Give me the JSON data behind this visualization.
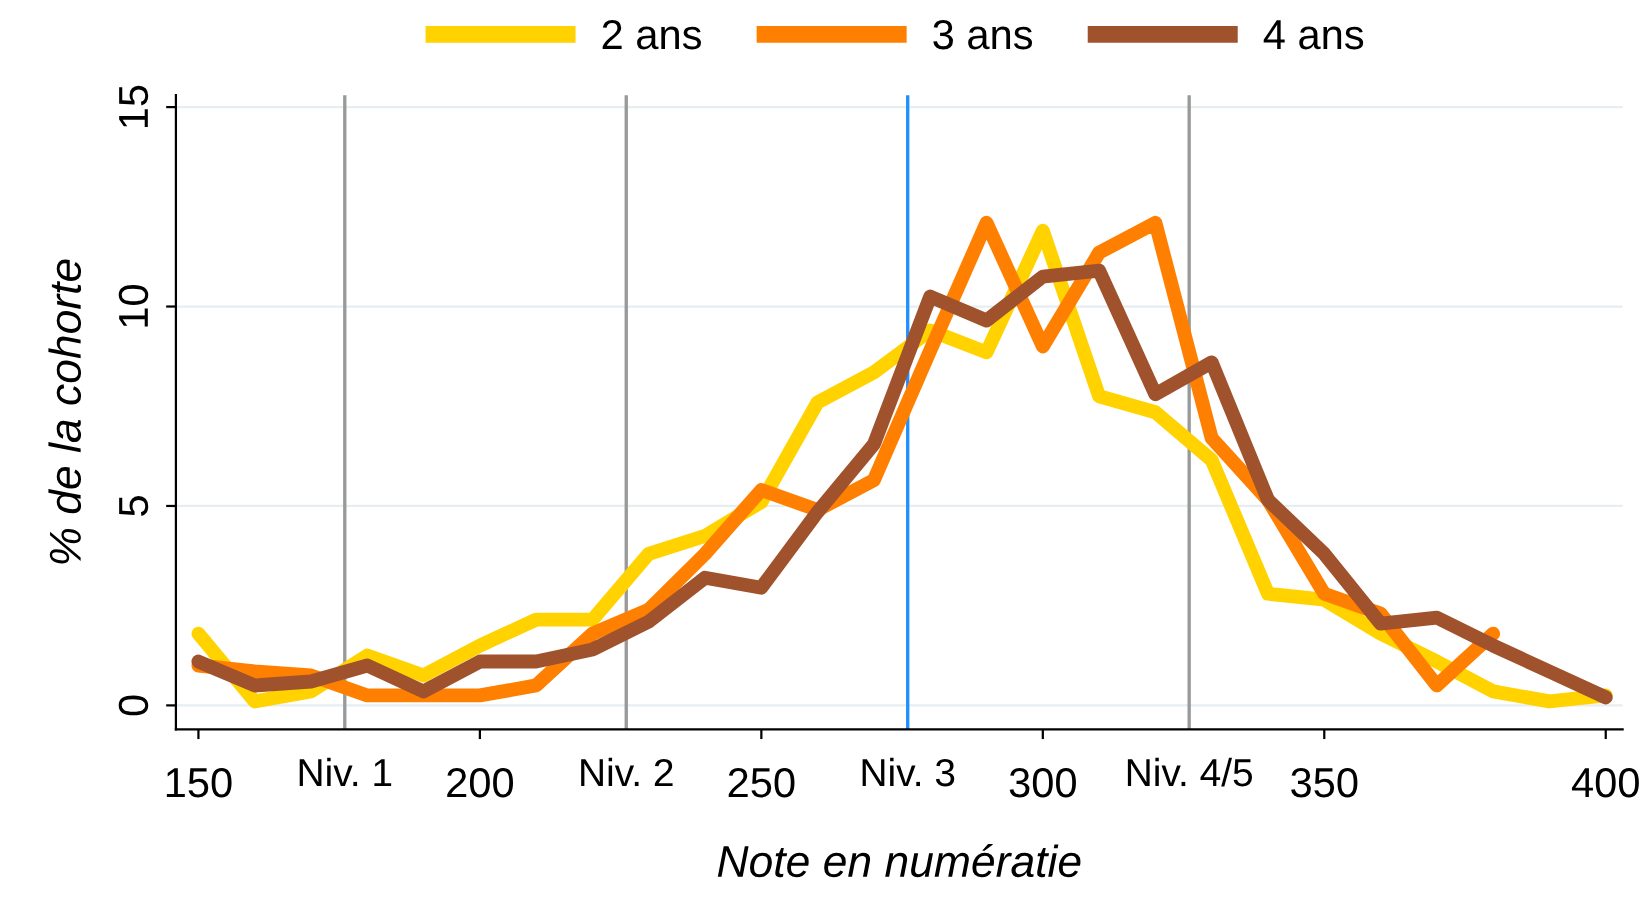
{
  "chart_data": {
    "type": "line",
    "xlabel": "Note en numératie",
    "ylabel": "% de la cohorte",
    "xlim": [
      146,
      403
    ],
    "ylim": [
      -0.6,
      15.3
    ],
    "xticks": [
      150,
      200,
      250,
      300,
      350,
      400
    ],
    "yticks": [
      0,
      5,
      10,
      15
    ],
    "grid": "y",
    "legend": "top",
    "marker": "none",
    "line_style": "solid",
    "series": [
      {
        "name": "2 ans",
        "color": "#ffd200",
        "x": [
          150,
          160,
          170,
          180,
          190,
          200,
          210,
          220,
          230,
          240,
          250,
          260,
          270,
          280,
          290,
          300,
          310,
          320,
          330,
          340,
          350,
          360,
          370,
          380,
          390,
          400
        ],
        "values": [
          1.8,
          0.1,
          0.35,
          1.25,
          0.75,
          1.5,
          2.15,
          2.15,
          3.8,
          4.25,
          5.1,
          7.6,
          8.35,
          9.4,
          8.85,
          11.9,
          7.75,
          7.35,
          6.15,
          2.8,
          2.65,
          1.8,
          1.1,
          0.35,
          0.1,
          0.25
        ]
      },
      {
        "name": "3 ans",
        "color": "#ff8000",
        "x": [
          150,
          160,
          170,
          180,
          190,
          200,
          210,
          220,
          230,
          240,
          250,
          260,
          270,
          280,
          290,
          300,
          310,
          320,
          330,
          340,
          350,
          360,
          370,
          380
        ],
        "values": [
          1.0,
          0.85,
          0.75,
          0.25,
          0.25,
          0.25,
          0.5,
          1.8,
          2.4,
          3.8,
          5.4,
          4.9,
          5.65,
          8.9,
          12.1,
          9.0,
          11.35,
          12.1,
          6.7,
          5.15,
          2.8,
          2.3,
          0.5,
          1.8
        ]
      },
      {
        "name": "4 ans",
        "color": "#a0522d",
        "x": [
          150,
          160,
          170,
          180,
          190,
          200,
          210,
          220,
          230,
          240,
          250,
          260,
          270,
          280,
          290,
          300,
          310,
          320,
          330,
          340,
          350,
          360,
          370,
          380,
          390,
          400
        ],
        "values": [
          1.1,
          0.5,
          0.6,
          1.0,
          0.35,
          1.1,
          1.1,
          1.4,
          2.1,
          3.2,
          2.95,
          4.85,
          6.55,
          10.25,
          9.65,
          10.75,
          10.9,
          7.8,
          8.6,
          5.15,
          3.8,
          2.05,
          2.2,
          1.5,
          0.85,
          0.2
        ]
      }
    ],
    "ref_lines": [
      {
        "axis": "x",
        "value": 176,
        "label": "Niv. 1",
        "color": "#999999"
      },
      {
        "axis": "x",
        "value": 226,
        "label": "Niv. 2",
        "color": "#999999"
      },
      {
        "axis": "x",
        "value": 276,
        "label": "Niv. 3",
        "color": "#1e90ff"
      },
      {
        "axis": "x",
        "value": 326,
        "label": "Niv. 4/5",
        "color": "#999999"
      }
    ]
  }
}
